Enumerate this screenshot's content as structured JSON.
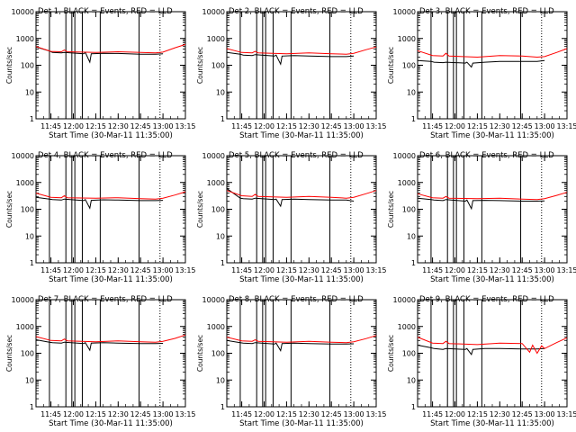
{
  "figure": {
    "common": {
      "xlabel": "Start Time (30-Mar-11 11:35:00)",
      "ylabel": "Counts/sec",
      "x_tick_labels": [
        "11:45",
        "12:00",
        "12:15",
        "12:30",
        "12:45",
        "13:00",
        "13:15"
      ],
      "y_tick_labels": [
        "1",
        "10",
        "100",
        "1000",
        "10000"
      ]
    }
  },
  "chart_data": [
    {
      "type": "line",
      "title": "Det 1, BLACK = Events, RED = LLD",
      "xlabel": "Start Time (30-Mar-11 11:35:00)",
      "ylabel": "Counts/sec",
      "y_scale": "log",
      "ylim": [
        1,
        10000
      ],
      "xlim": [
        "11:35",
        "13:15"
      ],
      "series": [
        {
          "name": "Events",
          "color": "#000000",
          "x": [
            "11:35",
            "11:44",
            "11:46",
            "11:52",
            "11:54",
            "12:07",
            "12:08",
            "12:11",
            "12:12",
            "12:20",
            "12:30",
            "12:45",
            "12:55",
            "13:00"
          ],
          "y": [
            480,
            340,
            300,
            290,
            300,
            270,
            300,
            130,
            270,
            280,
            275,
            260,
            260,
            270
          ]
        },
        {
          "name": "LLD",
          "color": "#ff0000",
          "x": [
            "11:35",
            "11:45",
            "11:52",
            "11:54",
            "11:56",
            "12:15",
            "12:30",
            "12:45",
            "12:55",
            "13:00",
            "13:08",
            "13:15"
          ],
          "y": [
            500,
            330,
            320,
            370,
            320,
            300,
            320,
            300,
            290,
            310,
            450,
            600
          ]
        }
      ],
      "vertical_lines": [
        "11:44",
        "11:55",
        "11:59",
        "12:01",
        "12:06",
        "12:18",
        "12:44"
      ]
    },
    {
      "type": "line",
      "title": "Det 2, BLACK = Events, RED = LLD",
      "xlabel": "Start Time (30-Mar-11 11:35:00)",
      "ylabel": "Counts/sec",
      "y_scale": "log",
      "ylim": [
        1,
        10000
      ],
      "xlim": [
        "11:35",
        "13:15"
      ],
      "series": [
        {
          "name": "Events",
          "color": "#000000",
          "x": [
            "11:35",
            "11:44",
            "11:46",
            "11:52",
            "11:54",
            "12:07",
            "12:08",
            "12:11",
            "12:12",
            "12:20",
            "12:30",
            "12:45",
            "12:55",
            "13:00"
          ],
          "y": [
            300,
            260,
            240,
            230,
            250,
            220,
            240,
            110,
            220,
            230,
            220,
            210,
            210,
            220
          ]
        },
        {
          "name": "LLD",
          "color": "#ff0000",
          "x": [
            "11:35",
            "11:45",
            "11:52",
            "11:54",
            "11:56",
            "12:15",
            "12:30",
            "12:45",
            "12:55",
            "13:00",
            "13:08",
            "13:15"
          ],
          "y": [
            420,
            300,
            290,
            330,
            290,
            270,
            290,
            270,
            260,
            280,
            380,
            480
          ]
        }
      ],
      "vertical_lines": [
        "11:44",
        "11:55",
        "11:59",
        "12:01",
        "12:06",
        "12:18",
        "12:44"
      ]
    },
    {
      "type": "line",
      "title": "Det 3, BLACK = Events, RED = LLD",
      "xlabel": "Start Time (30-Mar-11 11:35:00)",
      "ylabel": "Counts/sec",
      "y_scale": "log",
      "ylim": [
        1,
        10000
      ],
      "xlim": [
        "11:35",
        "13:15"
      ],
      "series": [
        {
          "name": "Events",
          "color": "#000000",
          "x": [
            "11:35",
            "11:44",
            "11:46",
            "11:52",
            "11:54",
            "12:07",
            "12:08",
            "12:11",
            "12:12",
            "12:20",
            "12:30",
            "12:45",
            "12:55",
            "13:00"
          ],
          "y": [
            150,
            140,
            130,
            125,
            130,
            120,
            130,
            85,
            120,
            130,
            140,
            140,
            140,
            150
          ]
        },
        {
          "name": "LLD",
          "color": "#ff0000",
          "x": [
            "11:35",
            "11:45",
            "11:52",
            "11:54",
            "11:56",
            "12:15",
            "12:30",
            "12:45",
            "12:55",
            "13:00",
            "13:08",
            "13:15"
          ],
          "y": [
            350,
            230,
            220,
            280,
            220,
            200,
            230,
            220,
            200,
            210,
            300,
            420
          ]
        }
      ],
      "vertical_lines": [
        "11:44",
        "11:55",
        "11:59",
        "12:01",
        "12:06",
        "12:18",
        "12:44"
      ]
    },
    {
      "type": "line",
      "title": "Det 4, BLACK = Events, RED = LLD",
      "xlabel": "Start Time (30-Mar-11 11:35:00)",
      "ylabel": "Counts/sec",
      "y_scale": "log",
      "ylim": [
        1,
        10000
      ],
      "xlim": [
        "11:35",
        "13:15"
      ],
      "series": [
        {
          "name": "Events",
          "color": "#000000",
          "x": [
            "11:35",
            "11:44",
            "11:46",
            "11:52",
            "11:54",
            "12:07",
            "12:08",
            "12:11",
            "12:12",
            "12:20",
            "12:30",
            "12:45",
            "12:55",
            "13:00"
          ],
          "y": [
            280,
            240,
            230,
            220,
            240,
            210,
            230,
            110,
            215,
            225,
            220,
            210,
            210,
            215
          ]
        },
        {
          "name": "LLD",
          "color": "#ff0000",
          "x": [
            "11:35",
            "11:45",
            "11:52",
            "11:54",
            "11:56",
            "12:15",
            "12:30",
            "12:45",
            "12:55",
            "13:00",
            "13:08",
            "13:15"
          ],
          "y": [
            400,
            280,
            270,
            320,
            270,
            260,
            270,
            250,
            240,
            260,
            340,
            450
          ]
        }
      ],
      "vertical_lines": [
        "11:44",
        "11:55",
        "11:59",
        "12:01",
        "12:06",
        "12:18",
        "12:44"
      ]
    },
    {
      "type": "line",
      "title": "Det 5, BLACK = Events, RED = LLD",
      "xlabel": "Start Time (30-Mar-11 11:35:00)",
      "ylabel": "Counts/sec",
      "y_scale": "log",
      "ylim": [
        1,
        10000
      ],
      "xlim": [
        "11:35",
        "13:15"
      ],
      "series": [
        {
          "name": "Events",
          "color": "#000000",
          "x": [
            "11:35",
            "11:44",
            "11:46",
            "11:52",
            "11:54",
            "12:07",
            "12:08",
            "12:11",
            "12:12",
            "12:20",
            "12:30",
            "12:45",
            "12:55",
            "13:00"
          ],
          "y": [
            600,
            260,
            250,
            240,
            260,
            230,
            240,
            130,
            230,
            240,
            230,
            220,
            220,
            200
          ]
        },
        {
          "name": "LLD",
          "color": "#ff0000",
          "x": [
            "11:35",
            "11:45",
            "11:52",
            "11:54",
            "11:56",
            "12:15",
            "12:30",
            "12:45",
            "12:55",
            "13:00",
            "13:08",
            "13:15"
          ],
          "y": [
            500,
            320,
            300,
            360,
            300,
            280,
            300,
            280,
            260,
            280,
            380,
            500
          ]
        }
      ],
      "vertical_lines": [
        "11:44",
        "11:55",
        "11:59",
        "12:01",
        "12:06",
        "12:18",
        "12:44"
      ]
    },
    {
      "type": "line",
      "title": "Det 6, BLACK = Events, RED = LLD",
      "xlabel": "Start Time (30-Mar-11 11:35:00)",
      "ylabel": "Counts/sec",
      "y_scale": "log",
      "ylim": [
        1,
        10000
      ],
      "xlim": [
        "11:35",
        "13:15"
      ],
      "series": [
        {
          "name": "Events",
          "color": "#000000",
          "x": [
            "11:35",
            "11:44",
            "11:46",
            "11:52",
            "11:54",
            "12:07",
            "12:08",
            "12:11",
            "12:12",
            "12:20",
            "12:30",
            "12:45",
            "12:55",
            "13:00"
          ],
          "y": [
            260,
            230,
            220,
            210,
            230,
            200,
            220,
            105,
            210,
            215,
            210,
            200,
            200,
            205
          ]
        },
        {
          "name": "LLD",
          "color": "#ff0000",
          "x": [
            "11:35",
            "11:45",
            "11:52",
            "11:54",
            "11:56",
            "12:15",
            "12:30",
            "12:45",
            "12:55",
            "13:00",
            "13:08",
            "13:15"
          ],
          "y": [
            380,
            270,
            260,
            300,
            260,
            250,
            260,
            240,
            230,
            250,
            330,
            430
          ]
        }
      ],
      "vertical_lines": [
        "11:44",
        "11:55",
        "11:59",
        "12:01",
        "12:06",
        "12:18",
        "12:44"
      ]
    },
    {
      "type": "line",
      "title": "Det 7, BLACK = Events, RED = LLD",
      "xlabel": "Start Time (30-Mar-11 11:35:00)",
      "ylabel": "Counts/sec",
      "y_scale": "log",
      "ylim": [
        1,
        10000
      ],
      "xlim": [
        "11:35",
        "13:15"
      ],
      "series": [
        {
          "name": "Events",
          "color": "#000000",
          "x": [
            "11:35",
            "11:44",
            "11:46",
            "11:52",
            "11:54",
            "12:07",
            "12:08",
            "12:11",
            "12:12",
            "12:20",
            "12:30",
            "12:45",
            "12:55",
            "13:00"
          ],
          "y": [
            320,
            260,
            250,
            240,
            260,
            230,
            250,
            130,
            240,
            250,
            240,
            230,
            230,
            235
          ]
        },
        {
          "name": "LLD",
          "color": "#ff0000",
          "x": [
            "11:35",
            "11:45",
            "11:52",
            "11:54",
            "11:56",
            "12:15",
            "12:30",
            "12:45",
            "12:55",
            "13:00",
            "13:08",
            "13:15"
          ],
          "y": [
            420,
            300,
            290,
            340,
            290,
            270,
            290,
            270,
            260,
            280,
            360,
            480
          ]
        }
      ],
      "vertical_lines": [
        "11:44",
        "11:55",
        "11:59",
        "12:01",
        "12:06",
        "12:18",
        "12:44"
      ]
    },
    {
      "type": "line",
      "title": "Det 8, BLACK = Events, RED = LLD",
      "xlabel": "Start Time (30-Mar-11 11:35:00)",
      "ylabel": "Counts/sec",
      "y_scale": "log",
      "ylim": [
        1,
        10000
      ],
      "xlim": [
        "11:35",
        "13:15"
      ],
      "series": [
        {
          "name": "Events",
          "color": "#000000",
          "x": [
            "11:35",
            "11:44",
            "11:46",
            "11:52",
            "11:54",
            "12:07",
            "12:08",
            "12:11",
            "12:12",
            "12:20",
            "12:30",
            "12:45",
            "12:55",
            "13:00"
          ],
          "y": [
            300,
            250,
            240,
            230,
            250,
            220,
            240,
            125,
            230,
            240,
            230,
            220,
            220,
            225
          ]
        },
        {
          "name": "LLD",
          "color": "#ff0000",
          "x": [
            "11:35",
            "11:45",
            "11:52",
            "11:54",
            "11:56",
            "12:15",
            "12:30",
            "12:45",
            "12:55",
            "13:00",
            "13:08",
            "13:15"
          ],
          "y": [
            400,
            290,
            280,
            320,
            280,
            260,
            280,
            260,
            250,
            270,
            350,
            460
          ]
        }
      ],
      "vertical_lines": [
        "11:44",
        "11:55",
        "11:59",
        "12:01",
        "12:06",
        "12:18",
        "12:44"
      ]
    },
    {
      "type": "line",
      "title": "Det 9, BLACK = Events, RED = LLD",
      "xlabel": "Start Time (30-Mar-11 11:35:00)",
      "ylabel": "Counts/sec",
      "y_scale": "log",
      "ylim": [
        1,
        10000
      ],
      "xlim": [
        "11:35",
        "13:15"
      ],
      "series": [
        {
          "name": "Events",
          "color": "#000000",
          "x": [
            "11:35",
            "11:44",
            "11:46",
            "11:52",
            "11:54",
            "12:07",
            "12:08",
            "12:11",
            "12:12",
            "12:20",
            "12:30",
            "12:45",
            "12:55",
            "13:00"
          ],
          "y": [
            200,
            160,
            150,
            140,
            150,
            140,
            150,
            90,
            140,
            150,
            150,
            145,
            145,
            150
          ]
        },
        {
          "name": "LLD",
          "color": "#ff0000",
          "x": [
            "11:35",
            "11:45",
            "11:52",
            "11:54",
            "11:56",
            "12:15",
            "12:30",
            "12:45",
            "12:50",
            "12:52",
            "12:55",
            "12:58",
            "13:00",
            "13:08",
            "13:15"
          ],
          "y": [
            400,
            240,
            230,
            280,
            230,
            210,
            240,
            230,
            110,
            200,
            100,
            190,
            150,
            250,
            380
          ]
        }
      ],
      "vertical_lines": [
        "11:44",
        "11:55",
        "11:59",
        "12:01",
        "12:06",
        "12:18",
        "12:44"
      ]
    }
  ]
}
